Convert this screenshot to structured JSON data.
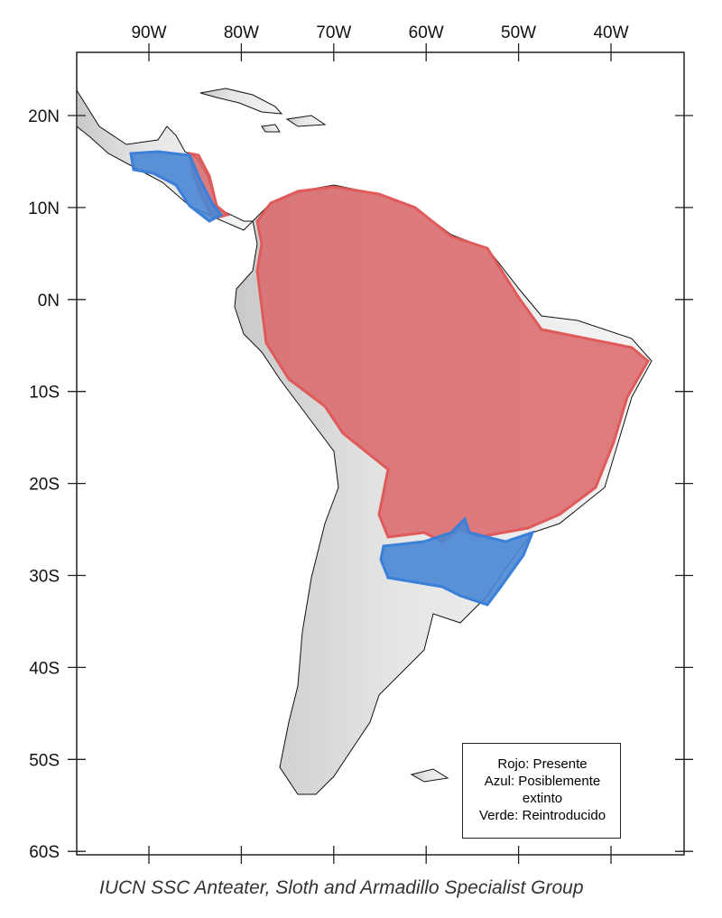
{
  "map": {
    "lon_labels": [
      "90W",
      "80W",
      "70W",
      "60W",
      "50W",
      "40W"
    ],
    "lat_labels": [
      "20N",
      "10N",
      "0N",
      "10S",
      "20S",
      "30S",
      "40S",
      "50S",
      "60S"
    ],
    "legend": [
      "Rojo: Presente",
      "Azul: Posiblemente extinto",
      "Verde: Reintroducido"
    ],
    "credit": "IUCN SSC Anteater, Sloth and Armadillo Specialist Group"
  }
}
